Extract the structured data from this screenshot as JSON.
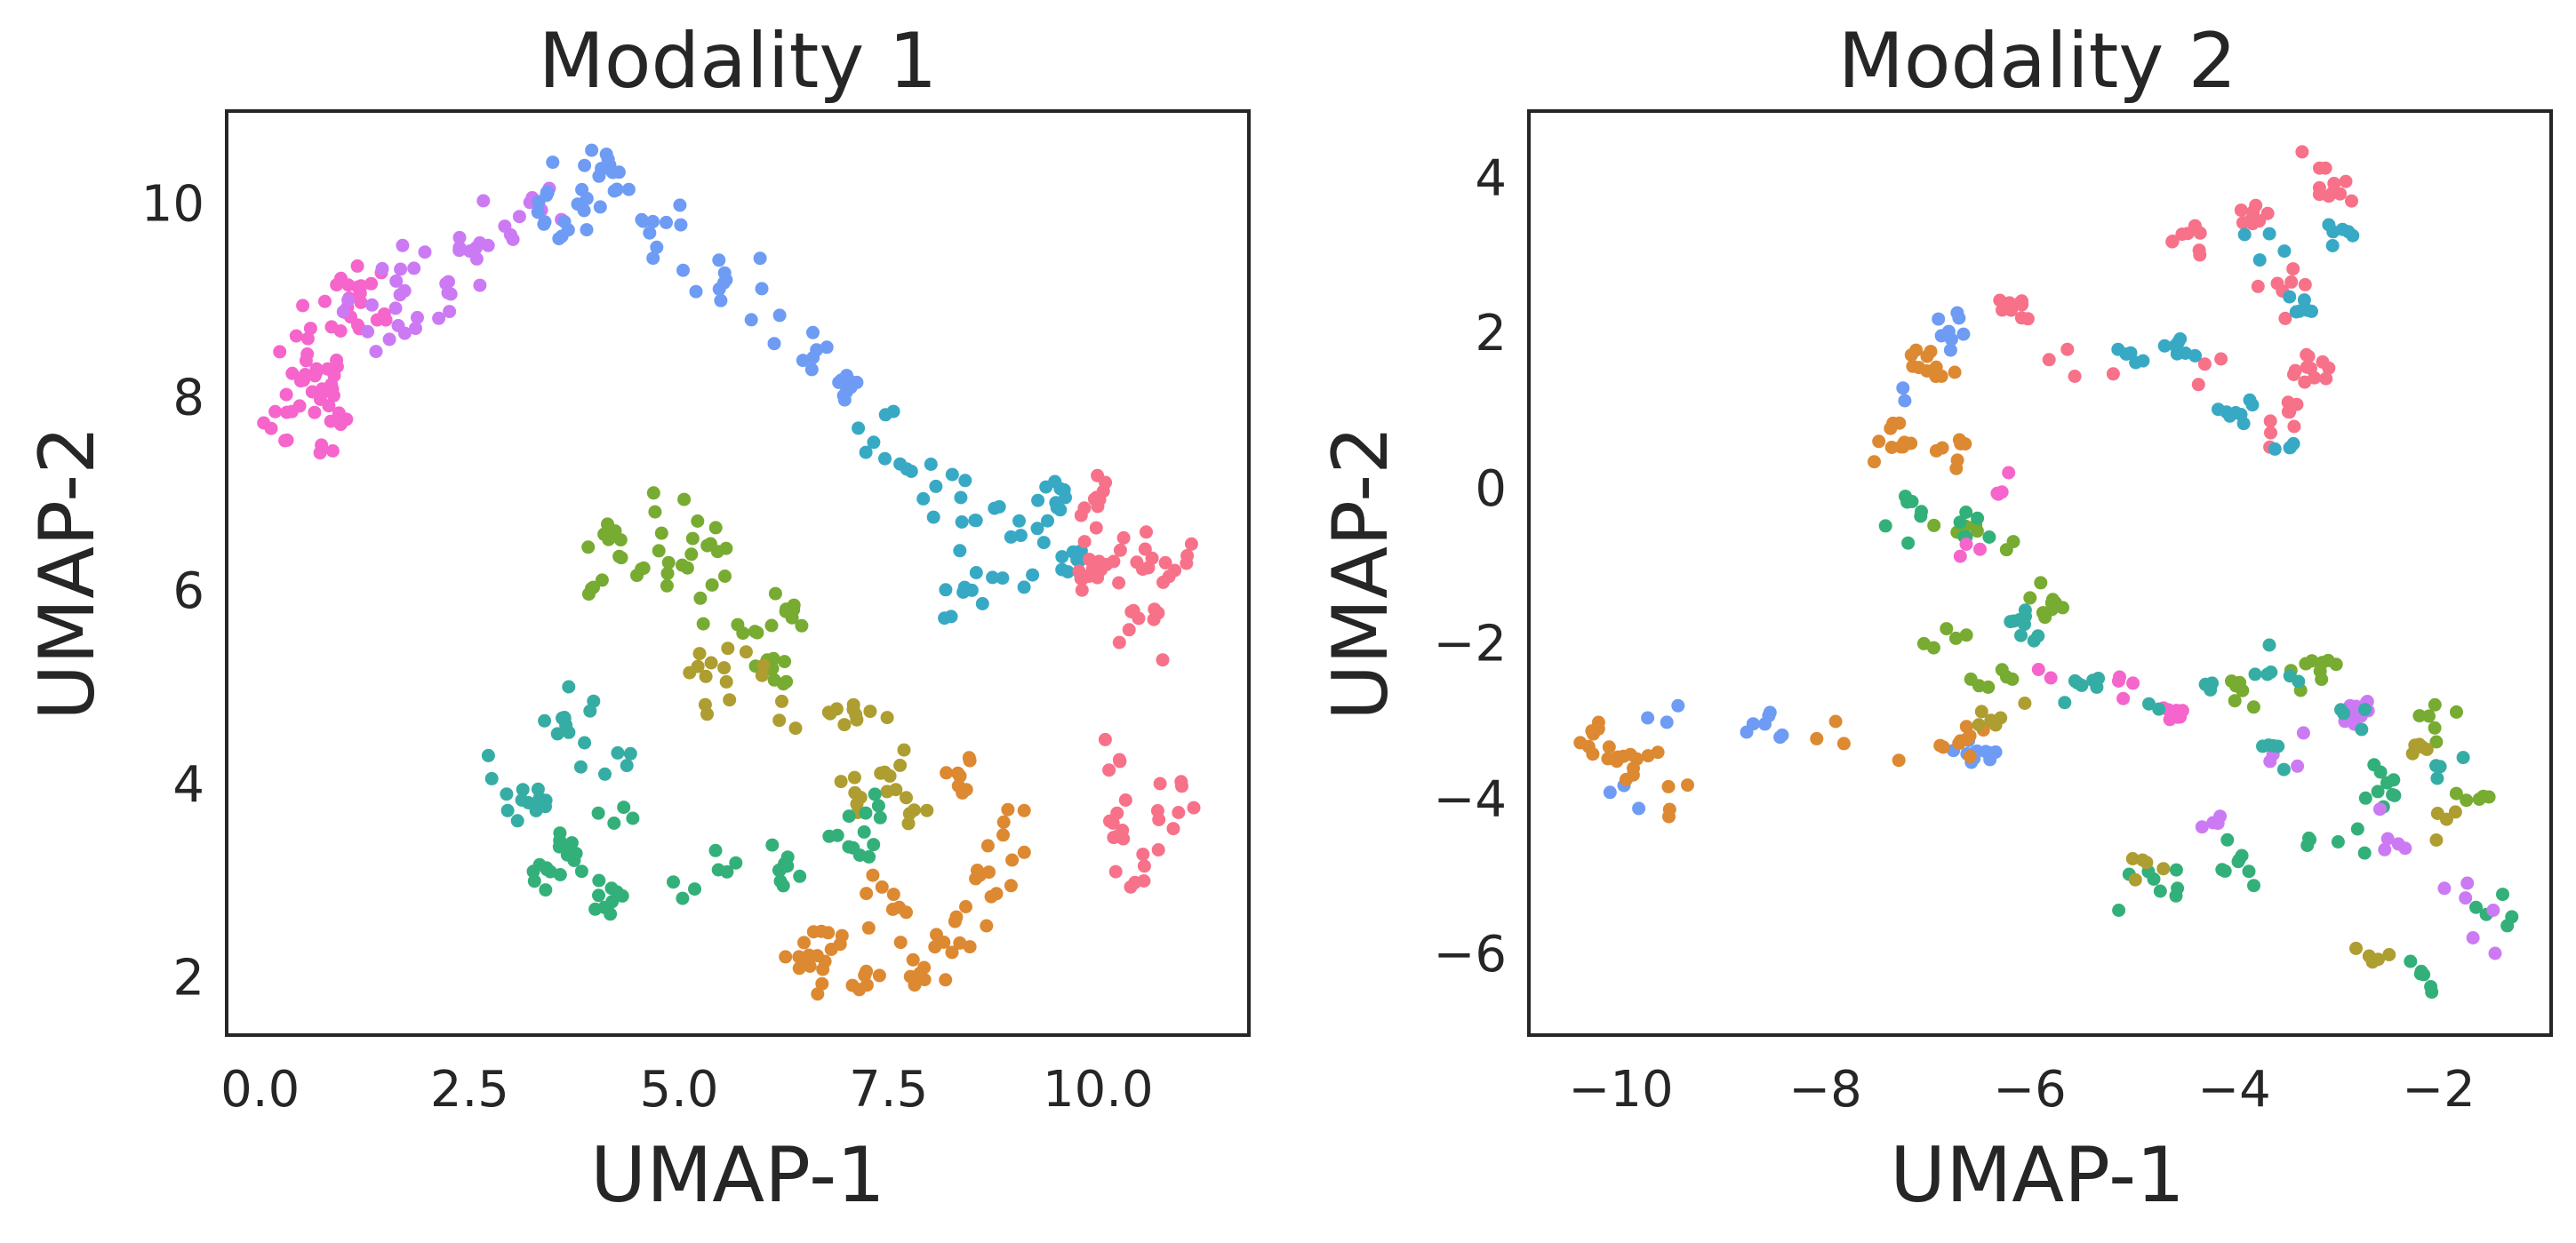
{
  "colors": {
    "c1": "#f77189",
    "c2": "#dc8932",
    "c3": "#ae9d31",
    "c4": "#77ab31",
    "c5": "#33b07a",
    "c6": "#36ada4",
    "c7": "#38a9c5",
    "c8": "#6e9bf4",
    "c9": "#cc7af4",
    "c10": "#f565cc"
  },
  "chart_data": [
    {
      "type": "scatter",
      "title": "Modality 1",
      "xlabel": "UMAP-1",
      "ylabel": "UMAP-2",
      "xlim": [
        -0.4,
        11.8
      ],
      "ylim": [
        1.4,
        10.95
      ],
      "xticks": [
        0.0,
        2.5,
        5.0,
        7.5,
        10.0
      ],
      "xtick_labels": [
        "0.0",
        "2.5",
        "5.0",
        "7.5",
        "10.0"
      ],
      "yticks": [
        2,
        4,
        6,
        8,
        10
      ],
      "ytick_labels": [
        "2",
        "4",
        "6",
        "8",
        "10"
      ],
      "grid": false,
      "series": [
        {
          "color": "c10",
          "cx": [
            0.3,
            0.7,
            1.1,
            0.5,
            0.9,
            0.35,
            0.8,
            1.2,
            0.6
          ],
          "cy": [
            8.0,
            8.3,
            8.9,
            8.7,
            8.1,
            7.85,
            7.7,
            9.0,
            8.45
          ],
          "r": [
            0.55,
            0.4,
            0.45,
            0.4,
            0.4,
            0.3,
            0.3,
            0.35,
            0.45
          ],
          "n": 65
        },
        {
          "color": "c9",
          "cx": [
            1.6,
            2.3,
            2.9,
            3.3,
            2.0,
            1.4,
            2.6
          ],
          "cy": [
            9.3,
            9.6,
            9.8,
            9.95,
            8.9,
            8.8,
            9.1
          ],
          "r": [
            0.45,
            0.4,
            0.35,
            0.25,
            0.4,
            0.35,
            0.35
          ],
          "n": 45
        },
        {
          "color": "c8",
          "cx": [
            3.8,
            4.4,
            4.9,
            5.5,
            6.0,
            6.6,
            7.0,
            3.5,
            4.2
          ],
          "cy": [
            10.1,
            9.9,
            9.6,
            9.2,
            8.8,
            8.4,
            8.1,
            9.9,
            10.25
          ],
          "r": [
            0.35,
            0.45,
            0.35,
            0.25,
            0.3,
            0.22,
            0.2,
            0.25,
            0.25
          ],
          "n": 70
        },
        {
          "color": "c7",
          "cx": [
            7.3,
            7.9,
            8.5,
            9.1,
            9.6,
            8.9,
            8.3,
            9.8
          ],
          "cy": [
            7.6,
            7.1,
            6.8,
            6.6,
            6.9,
            6.2,
            6.0,
            6.3
          ],
          "r": [
            0.3,
            0.3,
            0.35,
            0.35,
            0.2,
            0.3,
            0.25,
            0.2
          ],
          "n": 60
        },
        {
          "color": "c1",
          "cx": [
            10.1,
            10.6,
            10.9,
            10.4,
            9.9,
            10.3,
            10.8,
            10.5,
            10.2,
            10.0
          ],
          "cy": [
            6.6,
            6.4,
            6.1,
            5.7,
            6.2,
            4.3,
            3.8,
            3.1,
            3.5,
            7.0
          ],
          "r": [
            0.3,
            0.35,
            0.3,
            0.3,
            0.2,
            0.25,
            0.3,
            0.25,
            0.2,
            0.15
          ],
          "n": 75
        },
        {
          "color": "c4",
          "cx": [
            4.2,
            4.8,
            5.3,
            5.6,
            5.9,
            6.1,
            4.0,
            4.7,
            6.3
          ],
          "cy": [
            6.5,
            6.8,
            6.4,
            6.0,
            5.6,
            5.2,
            6.1,
            6.15,
            5.8
          ],
          "r": [
            0.3,
            0.3,
            0.3,
            0.25,
            0.25,
            0.2,
            0.25,
            0.25,
            0.2
          ],
          "n": 60
        },
        {
          "color": "c3",
          "cx": [
            5.3,
            5.8,
            6.4,
            6.9,
            7.3,
            7.6,
            5.5,
            7.1,
            7.8
          ],
          "cy": [
            5.1,
            5.3,
            4.8,
            4.7,
            4.5,
            4.1,
            4.9,
            3.9,
            3.7
          ],
          "r": [
            0.3,
            0.25,
            0.3,
            0.25,
            0.25,
            0.2,
            0.25,
            0.2,
            0.15
          ],
          "n": 45
        },
        {
          "color": "c6",
          "cx": [
            3.0,
            3.5,
            3.9,
            4.3,
            3.2
          ],
          "cy": [
            4.1,
            4.5,
            4.8,
            4.2,
            3.8
          ],
          "r": [
            0.3,
            0.3,
            0.25,
            0.3,
            0.2
          ],
          "n": 30
        },
        {
          "color": "c5",
          "cx": [
            3.7,
            4.4,
            4.9,
            5.6,
            6.2,
            6.9,
            7.4,
            3.4,
            4.1
          ],
          "cy": [
            3.3,
            3.6,
            3.0,
            3.2,
            3.1,
            3.4,
            3.8,
            3.1,
            2.85
          ],
          "r": [
            0.3,
            0.35,
            0.25,
            0.3,
            0.25,
            0.3,
            0.2,
            0.2,
            0.2
          ],
          "n": 60
        },
        {
          "color": "c2",
          "cx": [
            6.7,
            7.2,
            7.8,
            8.3,
            8.7,
            9.0,
            8.5,
            7.5,
            6.5
          ],
          "cy": [
            2.3,
            2.1,
            2.0,
            2.5,
            3.0,
            3.6,
            4.2,
            2.8,
            2.15
          ],
          "r": [
            0.3,
            0.3,
            0.3,
            0.3,
            0.3,
            0.3,
            0.25,
            0.25,
            0.2
          ],
          "n": 75
        }
      ]
    },
    {
      "type": "scatter",
      "title": "Modality 2",
      "xlabel": "UMAP-1",
      "ylabel": "UMAP-2",
      "xlim": [
        -10.9,
        -0.9
      ],
      "ylim": [
        -7.05,
        4.85
      ],
      "xticks": [
        -10,
        -8,
        -6,
        -4,
        -2
      ],
      "xtick_labels": [
        "−10",
        "−8",
        "−6",
        "−4",
        "−2"
      ],
      "yticks": [
        -6,
        -4,
        -2,
        0,
        2,
        4
      ],
      "ytick_labels": [
        "−6",
        "−4",
        "−2",
        "0",
        "2",
        "4"
      ],
      "grid": false,
      "series": [
        {
          "color": "c1",
          "cx": [
            -3.3,
            -3.8,
            -3.0,
            -4.5,
            -3.5,
            -5.5,
            -4.2,
            -3.6,
            -3.3,
            -6.2
          ],
          "cy": [
            4.0,
            3.5,
            3.8,
            3.2,
            2.5,
            1.6,
            1.4,
            0.9,
            1.5,
            2.3
          ],
          "r": [
            0.25,
            0.25,
            0.2,
            0.2,
            0.3,
            0.3,
            0.2,
            0.25,
            0.2,
            0.2
          ],
          "n": 70
        },
        {
          "color": "c7",
          "cx": [
            -3.6,
            -3.4,
            -4.5,
            -4.0,
            -3.4,
            -5.0,
            -3.0
          ],
          "cy": [
            3.2,
            2.3,
            1.8,
            1.0,
            0.5,
            1.7,
            3.3
          ],
          "r": [
            0.25,
            0.2,
            0.2,
            0.2,
            0.15,
            0.2,
            0.15
          ],
          "n": 40
        },
        {
          "color": "c8",
          "cx": [
            -7.3,
            -6.8,
            -9.5,
            -8.6,
            -10.0,
            -6.5
          ],
          "cy": [
            1.3,
            2.0,
            -2.9,
            -3.0,
            -4.1,
            -3.4
          ],
          "r": [
            0.25,
            0.2,
            0.25,
            0.3,
            0.3,
            0.2
          ],
          "n": 35
        },
        {
          "color": "c2",
          "cx": [
            -7.0,
            -7.3,
            -6.8,
            -10.0,
            -9.6,
            -10.3,
            -8.0,
            -7.1,
            -6.6
          ],
          "cy": [
            1.6,
            0.6,
            0.5,
            -3.5,
            -4.1,
            -3.2,
            -3.1,
            -3.5,
            -3.2
          ],
          "r": [
            0.3,
            0.25,
            0.2,
            0.3,
            0.3,
            0.2,
            0.3,
            0.25,
            0.2
          ],
          "n": 65
        },
        {
          "color": "c4",
          "cx": [
            -6.7,
            -6.2,
            -5.9,
            -6.8,
            -6.4,
            -4.0,
            -3.2,
            -2.1,
            -1.6
          ],
          "cy": [
            -0.5,
            -0.9,
            -1.5,
            -2.0,
            -2.5,
            -2.6,
            -2.3,
            -3.0,
            -4.0
          ],
          "r": [
            0.25,
            0.2,
            0.25,
            0.25,
            0.2,
            0.25,
            0.2,
            0.25,
            0.2
          ],
          "n": 55
        },
        {
          "color": "c5",
          "cx": [
            -7.1,
            -6.5,
            -4.8,
            -4.0,
            -3.0,
            -2.6,
            -2.2,
            -1.5
          ],
          "cy": [
            -0.3,
            -0.5,
            -5.2,
            -4.9,
            -4.4,
            -3.9,
            -6.2,
            -5.4
          ],
          "r": [
            0.2,
            0.2,
            0.3,
            0.3,
            0.3,
            0.25,
            0.25,
            0.25
          ],
          "n": 55
        },
        {
          "color": "c3",
          "cx": [
            -6.3,
            -4.9,
            -2.6,
            -2.2,
            -1.9
          ],
          "cy": [
            -3.0,
            -5.0,
            -6.0,
            -3.4,
            -4.3
          ],
          "r": [
            0.25,
            0.2,
            0.25,
            0.2,
            0.2
          ],
          "n": 25
        },
        {
          "color": "c9",
          "cx": [
            -4.7,
            -4.3,
            -3.4,
            -2.4,
            -1.8,
            -1.6,
            -2.8
          ],
          "cy": [
            -5.4,
            -4.3,
            -3.3,
            -4.6,
            -5.2,
            -5.8,
            -2.9
          ],
          "r": [
            0.2,
            0.2,
            0.2,
            0.25,
            0.2,
            0.2,
            0.2
          ],
          "n": 30
        },
        {
          "color": "c10",
          "cx": [
            -6.6,
            -5.9,
            -5.1,
            -6.3,
            -4.6
          ],
          "cy": [
            -0.8,
            -2.3,
            -2.6,
            0.0,
            -2.9
          ],
          "r": [
            0.2,
            0.2,
            0.2,
            0.15,
            0.15
          ],
          "n": 20
        },
        {
          "color": "c6",
          "cx": [
            -5.5,
            -4.5,
            -3.6,
            -2.8,
            -1.9,
            -6.0,
            -3.7
          ],
          "cy": [
            -2.5,
            -2.7,
            -2.4,
            -2.9,
            -3.6,
            -1.7,
            -3.4
          ],
          "r": [
            0.25,
            0.25,
            0.25,
            0.25,
            0.2,
            0.2,
            0.2
          ],
          "n": 40
        }
      ]
    }
  ]
}
